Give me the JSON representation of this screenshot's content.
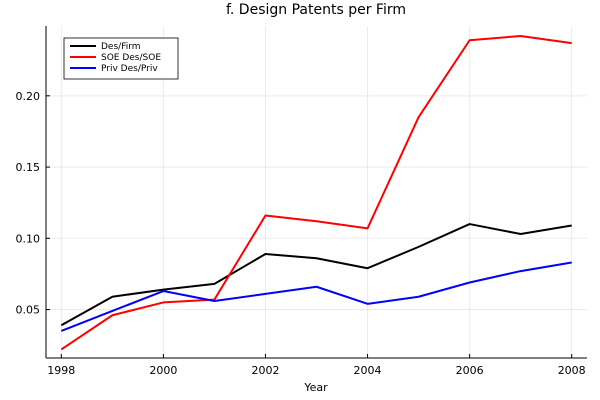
{
  "chart_data": {
    "type": "line",
    "title": "f. Design Patents per Firm",
    "xlabel": "Year",
    "ylabel": "",
    "xlim": [
      1997.7,
      2008.3
    ],
    "ylim": [
      0.016,
      0.249
    ],
    "xticks": [
      1998,
      2000,
      2002,
      2004,
      2006,
      2008
    ],
    "xtick_labels": [
      "1998",
      "2000",
      "2002",
      "2004",
      "2006",
      "2008"
    ],
    "yticks": [
      0.05,
      0.1,
      0.15,
      0.2
    ],
    "ytick_labels": [
      "0.05",
      "0.10",
      "0.15",
      "0.20"
    ],
    "grid": true,
    "legend_position": "top-left",
    "x": [
      1998,
      1999,
      2000,
      2001,
      2002,
      2003,
      2004,
      2005,
      2006,
      2007,
      2008
    ],
    "series": [
      {
        "name": "Des/Firm",
        "color": "#000000",
        "values": [
          0.039,
          0.059,
          0.064,
          0.068,
          0.089,
          0.086,
          0.079,
          0.094,
          0.11,
          0.103,
          0.109
        ]
      },
      {
        "name": "SOE Des/SOE",
        "color": "#ff0000",
        "values": [
          0.022,
          0.046,
          0.055,
          0.057,
          0.116,
          0.112,
          0.107,
          0.185,
          0.239,
          0.242,
          0.237
        ]
      },
      {
        "name": "Priv Des/Priv",
        "color": "#0000ff",
        "values": [
          0.035,
          0.049,
          0.063,
          0.056,
          0.061,
          0.066,
          0.054,
          0.059,
          0.069,
          0.077,
          0.083
        ]
      }
    ]
  }
}
